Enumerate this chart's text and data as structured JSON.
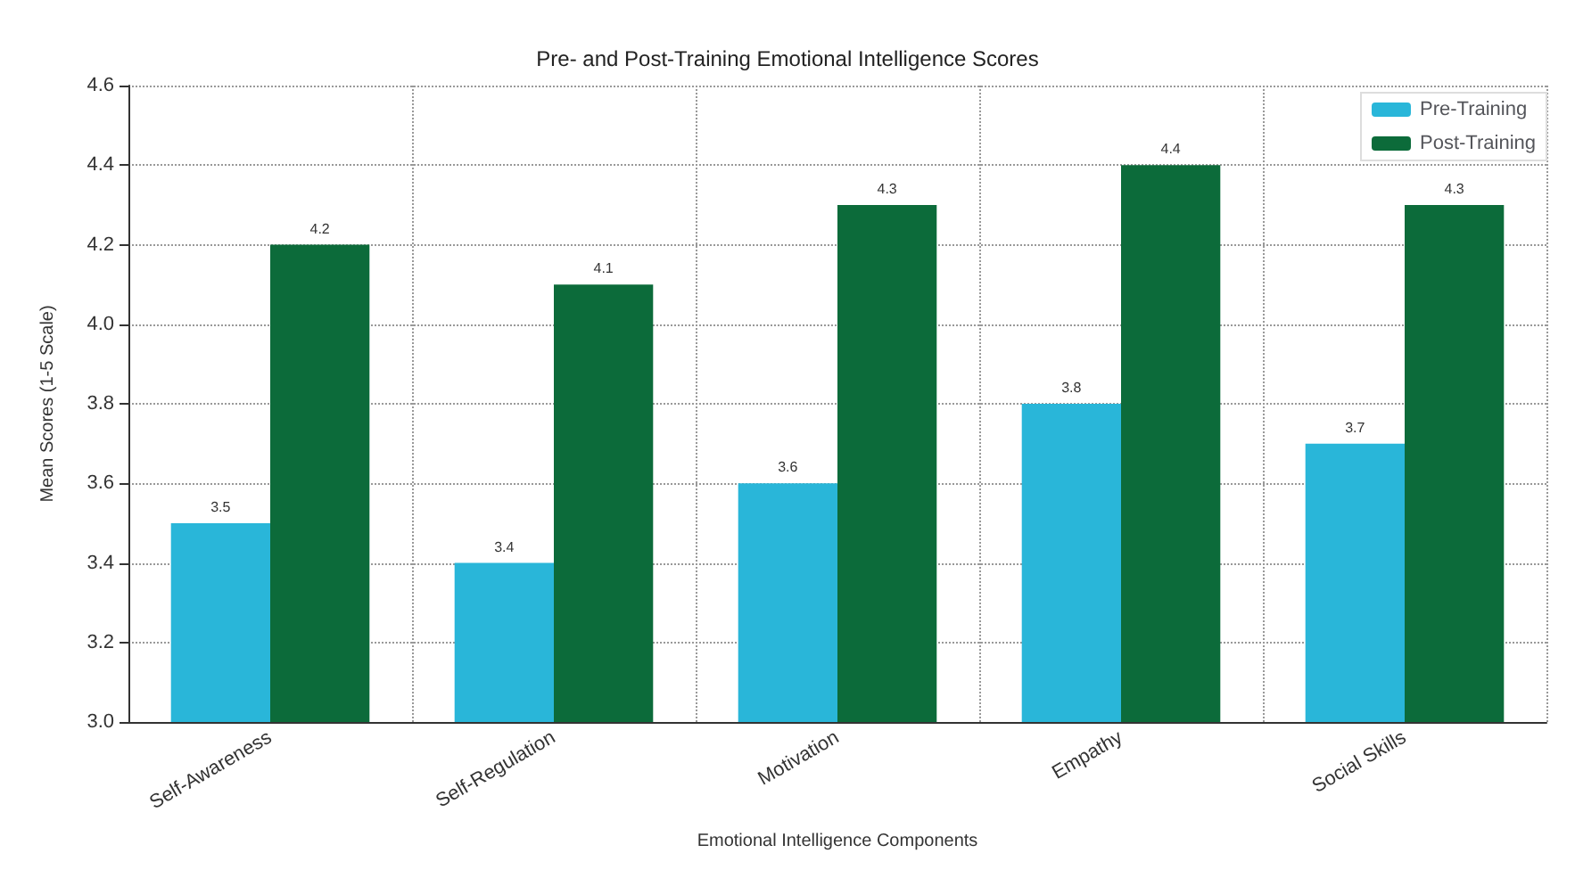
{
  "chart_data": {
    "type": "bar",
    "title": "Pre- and Post-Training Emotional Intelligence Scores",
    "xlabel": "Emotional Intelligence Components",
    "ylabel": "Mean Scores (1-5 Scale)",
    "categories": [
      "Self-Awareness",
      "Self-Regulation",
      "Motivation",
      "Empathy",
      "Social Skills"
    ],
    "series": [
      {
        "name": "Pre-Training",
        "color": "#29b6d9",
        "values": [
          3.5,
          3.4,
          3.6,
          3.8,
          3.7
        ]
      },
      {
        "name": "Post-Training",
        "color": "#0c6b3a",
        "values": [
          4.2,
          4.1,
          4.3,
          4.4,
          4.3
        ]
      }
    ],
    "ylim": [
      3.0,
      4.6
    ],
    "yticks": [
      {
        "value": 3.0,
        "label": "3.0"
      },
      3.2,
      3.4,
      3.6,
      3.8,
      {
        "value": 4.0,
        "label": "4.0"
      },
      4.2,
      4.4,
      4.6
    ],
    "grid": true,
    "legend": "top right",
    "data_labels": true
  }
}
